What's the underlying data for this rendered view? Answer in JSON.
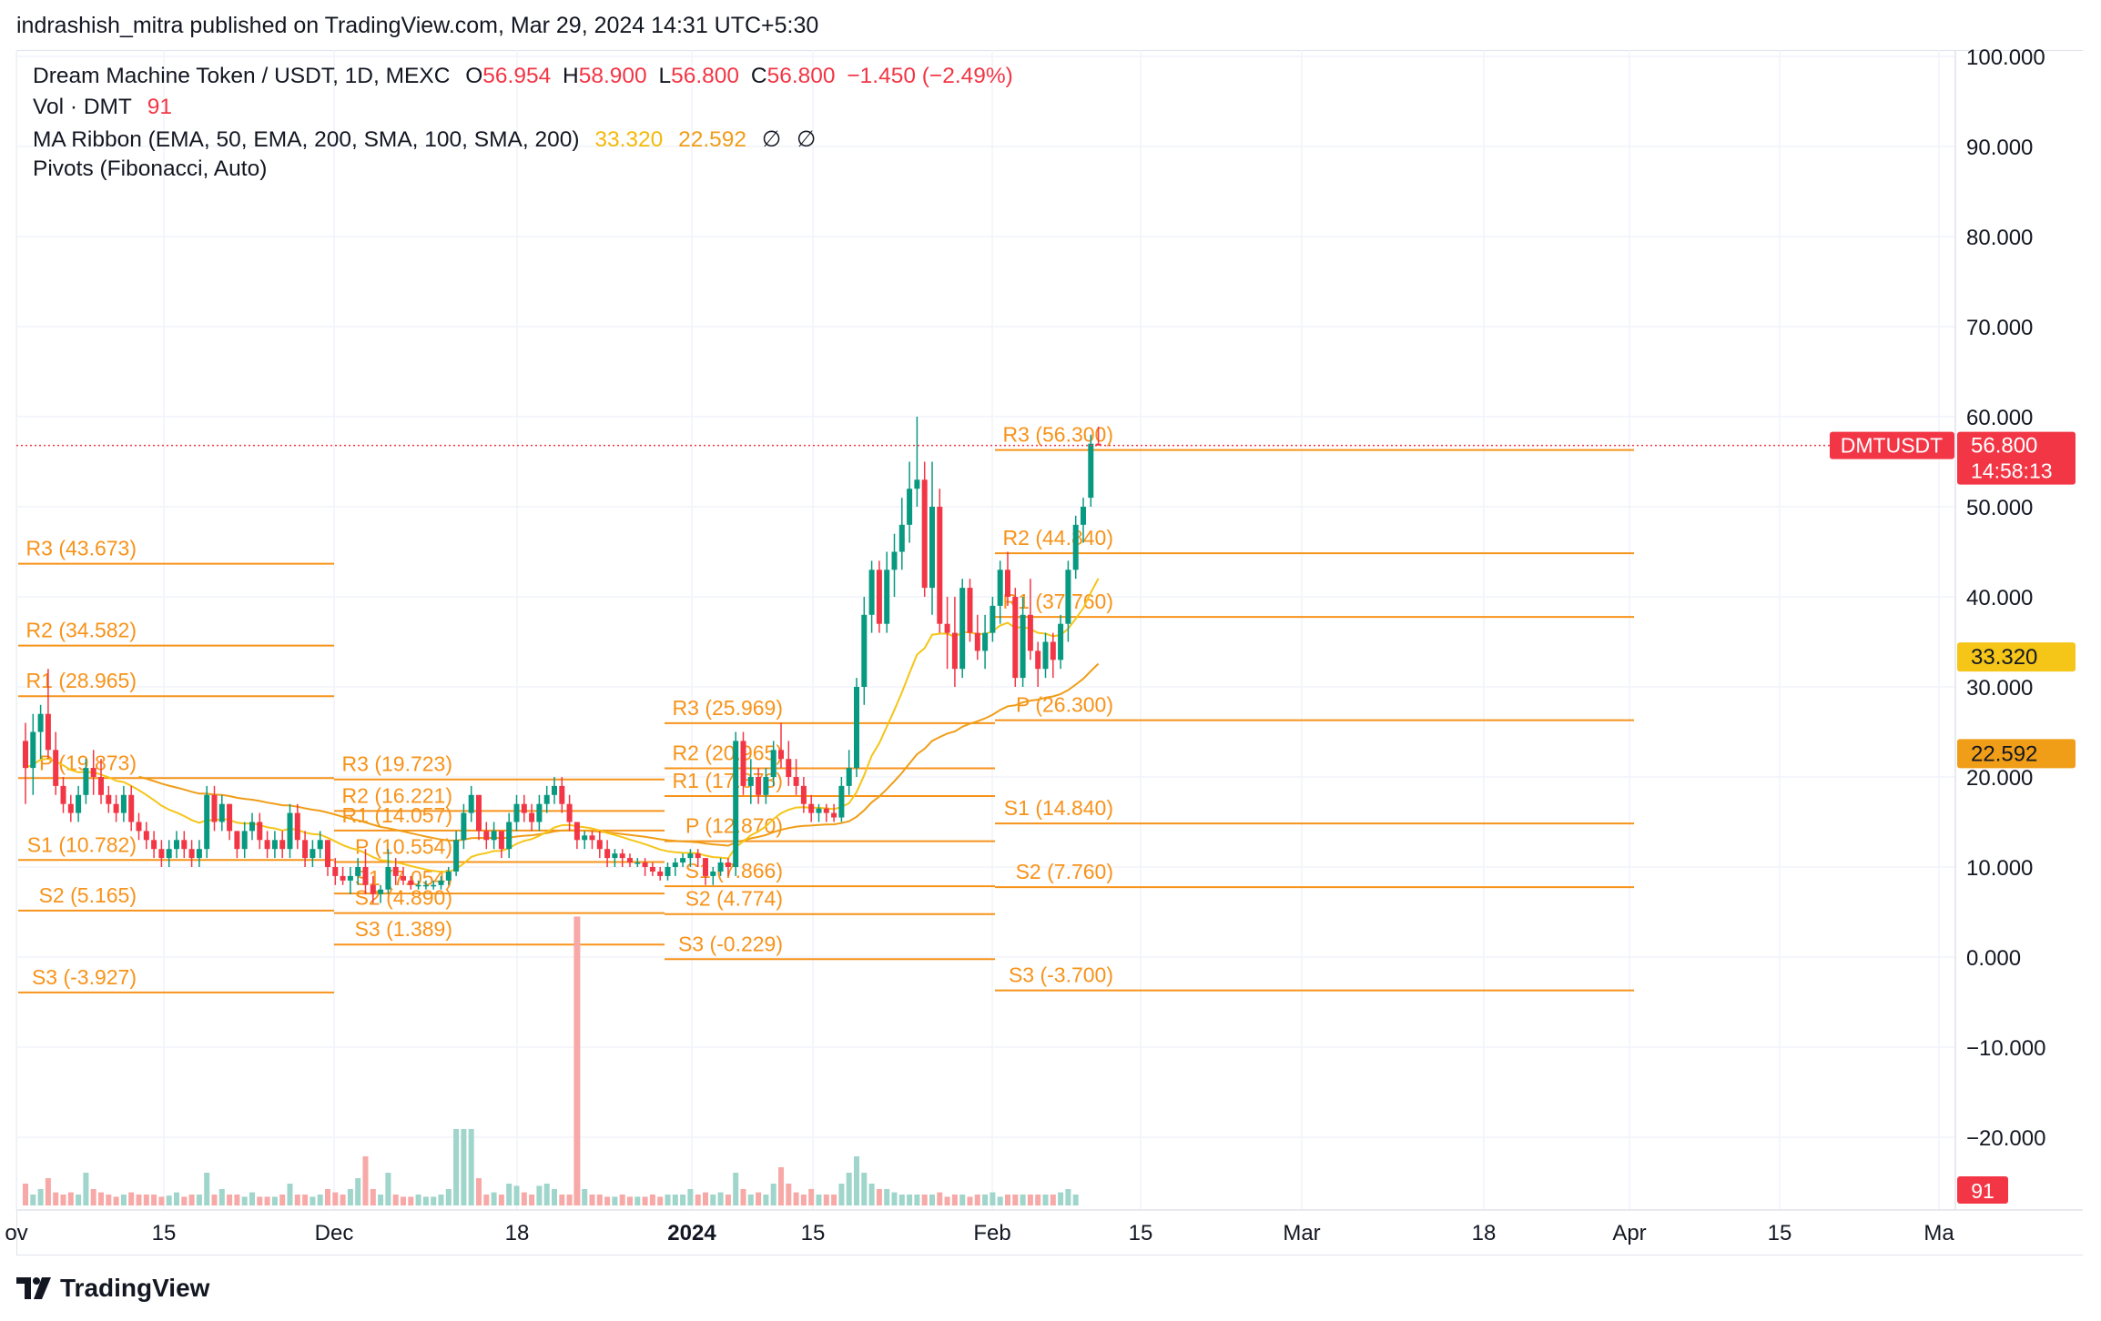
{
  "header": {
    "attribution": "indrashish_mitra published on TradingView.com, Mar 29, 2024 14:31 UTC+5:30"
  },
  "legend": {
    "symbol_line": "Dream Machine Token / USDT, 1D, MEXC",
    "o_label": "O",
    "o_value": "56.954",
    "h_label": "H",
    "h_value": "58.900",
    "l_label": "L",
    "l_value": "56.800",
    "c_label": "C",
    "c_value": "56.800",
    "change": "−1.450 (−2.49%)",
    "vol_label": "Vol · DMT",
    "vol_value": "91",
    "ma_label": "MA Ribbon (EMA, 50, EMA, 200, SMA, 100, SMA, 200)",
    "ma_value1": "33.320",
    "ma_value2": "22.592",
    "ma_na1": "∅",
    "ma_na2": "∅",
    "pivots_label": "Pivots (Fibonacci, Auto)"
  },
  "footer": {
    "brand": "TradingView"
  },
  "colors": {
    "up": "#089981",
    "down": "#f23645",
    "vol_up": "#9fd5ca",
    "vol_down": "#f7a9a7",
    "pivot": "#f7931a",
    "ema50": "#f5c518",
    "ema200": "#f09d18",
    "grid": "#f0f3fa",
    "price_line": "#f23645"
  },
  "chart_data": {
    "type": "candlestick",
    "symbol": "DMTUSDT",
    "ylim": [
      -25,
      102
    ],
    "y_ticks": [
      "100.000",
      "90.000",
      "80.000",
      "70.000",
      "60.000",
      "50.000",
      "40.000",
      "30.000",
      "20.000",
      "10.000",
      "0.000",
      "−10.000",
      "−20.000"
    ],
    "x_ticks": [
      "ov",
      "15",
      "Dec",
      "18",
      "2024",
      "15",
      "Feb",
      "15",
      "Mar",
      "18",
      "Apr",
      "15",
      "Ma"
    ],
    "last_price": {
      "label": "DMTUSDT",
      "value": "56.800",
      "countdown": "14:58:13",
      "y": 56.8
    },
    "ma_badges": [
      {
        "value": "33.320",
        "y": 33.32
      },
      {
        "value": "22.592",
        "y": 22.592
      }
    ],
    "volume_badge": "91",
    "pivot_periods": [
      {
        "levels": [
          {
            "label": "R3 (43.673)",
            "y": 43.673
          },
          {
            "label": "R2 (34.582)",
            "y": 34.582
          },
          {
            "label": "R1 (28.965)",
            "y": 28.965
          },
          {
            "label": "P (19.873)",
            "y": 19.873
          },
          {
            "label": "S1 (10.782)",
            "y": 10.782
          },
          {
            "label": "S2 (5.165)",
            "y": 5.165
          },
          {
            "label": "S3 (-3.927)",
            "y": -3.927
          }
        ]
      },
      {
        "levels": [
          {
            "label": "R3 (19.723)",
            "y": 19.723
          },
          {
            "label": "R2 (16.221)",
            "y": 16.221
          },
          {
            "label": "R1 (14.057)",
            "y": 14.057
          },
          {
            "label": "P (10.554)",
            "y": 10.554
          },
          {
            "label": "S1 (7.054)",
            "y": 7.054
          },
          {
            "label": "S2 (4.890)",
            "y": 4.89
          },
          {
            "label": "S3 (1.389)",
            "y": 1.389
          }
        ]
      },
      {
        "levels": [
          {
            "label": "R3 (25.969)",
            "y": 25.969
          },
          {
            "label": "R2 (20.965)",
            "y": 20.965
          },
          {
            "label": "R1 (17.873)",
            "y": 17.873
          },
          {
            "label": "P (12.870)",
            "y": 12.87
          },
          {
            "label": "S1 (7.866)",
            "y": 7.866
          },
          {
            "label": "S2 (4.774)",
            "y": 4.774
          },
          {
            "label": "S3 (-0.229)",
            "y": -0.229
          }
        ]
      },
      {
        "levels": [
          {
            "label": "R3 (56.300)",
            "y": 56.3
          },
          {
            "label": "R2 (44.840)",
            "y": 44.84
          },
          {
            "label": "R1 (37.760)",
            "y": 37.76
          },
          {
            "label": "P (26.300)",
            "y": 26.3
          },
          {
            "label": "S1 (14.840)",
            "y": 14.84
          },
          {
            "label": "S2 (7.760)",
            "y": 7.76
          },
          {
            "label": "S3 (-3.700)",
            "y": -3.7
          }
        ]
      }
    ],
    "candles": [
      [
        24,
        26,
        17,
        21
      ],
      [
        21,
        27,
        18,
        25
      ],
      [
        25,
        28,
        22,
        27
      ],
      [
        27,
        32,
        22,
        23
      ],
      [
        23,
        25,
        18,
        19
      ],
      [
        19,
        20,
        16,
        17
      ],
      [
        17,
        18,
        15,
        16
      ],
      [
        16,
        19,
        15,
        18
      ],
      [
        18,
        22,
        17,
        21
      ],
      [
        21,
        23,
        18,
        20
      ],
      [
        20,
        22,
        17,
        18
      ],
      [
        18,
        19,
        16,
        17
      ],
      [
        17,
        18,
        15,
        16
      ],
      [
        16,
        19,
        15,
        18
      ],
      [
        18,
        19,
        14,
        15
      ],
      [
        15,
        16,
        13,
        14
      ],
      [
        14,
        15,
        12,
        13
      ],
      [
        13,
        14,
        11,
        12
      ],
      [
        12,
        13,
        10,
        11
      ],
      [
        11,
        13,
        10,
        12
      ],
      [
        12,
        14,
        11,
        13
      ],
      [
        13,
        14,
        11,
        12
      ],
      [
        12,
        13,
        10,
        11
      ],
      [
        11,
        13,
        10,
        12
      ],
      [
        12,
        19,
        11,
        18
      ],
      [
        18,
        19,
        14,
        15
      ],
      [
        15,
        18,
        14,
        17
      ],
      [
        17,
        17,
        13,
        14
      ],
      [
        14,
        14,
        11,
        12
      ],
      [
        12,
        15,
        11,
        14
      ],
      [
        14,
        16,
        13,
        15
      ],
      [
        15,
        16,
        12,
        13
      ],
      [
        13,
        14,
        11,
        12
      ],
      [
        12,
        14,
        11,
        13
      ],
      [
        13,
        14,
        11,
        12
      ],
      [
        12,
        17,
        11,
        16
      ],
      [
        16,
        17,
        12,
        13
      ],
      [
        13,
        14,
        10,
        11
      ],
      [
        11,
        13,
        10,
        12
      ],
      [
        12,
        14,
        11,
        13
      ],
      [
        13,
        13,
        9,
        10
      ],
      [
        10,
        11,
        8,
        9
      ],
      [
        9,
        10,
        8,
        8.5
      ],
      [
        8.5,
        10,
        7,
        9
      ],
      [
        9,
        11,
        8,
        10
      ],
      [
        10,
        12,
        7,
        8
      ],
      [
        8,
        9,
        6,
        7
      ],
      [
        7,
        8,
        6,
        7.5
      ],
      [
        7.5,
        12,
        7,
        10
      ],
      [
        10,
        11,
        8,
        9
      ],
      [
        9,
        10,
        8,
        8.5
      ],
      [
        8.5,
        9,
        7.5,
        8
      ],
      [
        8,
        8.5,
        7.5,
        8
      ],
      [
        8,
        8.5,
        7.5,
        8
      ],
      [
        8,
        8.5,
        7.5,
        8
      ],
      [
        8,
        9,
        7.5,
        8.5
      ],
      [
        8.5,
        10,
        8,
        9.5
      ],
      [
        9.5,
        14,
        9,
        13
      ],
      [
        13,
        17,
        12,
        16
      ],
      [
        16,
        19,
        15,
        18
      ],
      [
        18,
        18,
        13,
        14
      ],
      [
        14,
        15,
        12,
        13
      ],
      [
        13,
        15,
        12,
        14
      ],
      [
        14,
        14,
        11,
        12
      ],
      [
        12,
        16,
        11,
        15
      ],
      [
        15,
        18,
        14,
        17
      ],
      [
        17,
        18,
        15,
        16
      ],
      [
        16,
        17,
        14,
        15
      ],
      [
        15,
        18,
        14,
        17
      ],
      [
        17,
        19,
        16,
        18
      ],
      [
        18,
        20,
        17,
        19
      ],
      [
        19,
        20,
        16,
        17
      ],
      [
        17,
        18,
        14,
        15
      ],
      [
        15,
        15,
        12,
        13
      ],
      [
        13,
        14,
        12,
        13.5
      ],
      [
        13.5,
        14,
        12,
        13
      ],
      [
        13,
        14,
        11,
        12
      ],
      [
        12,
        13,
        10,
        11
      ],
      [
        11,
        12,
        10,
        11.5
      ],
      [
        11.5,
        12,
        10,
        11
      ],
      [
        11,
        11.5,
        10,
        10.5
      ],
      [
        10.5,
        11,
        10,
        10.5
      ],
      [
        10.5,
        11,
        9,
        10
      ],
      [
        10,
        10.5,
        9,
        9.5
      ],
      [
        9.5,
        10,
        8.5,
        9
      ],
      [
        9,
        10.5,
        8.5,
        10
      ],
      [
        10,
        11,
        9,
        10.5
      ],
      [
        10.5,
        11.5,
        10,
        11
      ],
      [
        11,
        12,
        10,
        11.5
      ],
      [
        11.5,
        12,
        10,
        11
      ],
      [
        11,
        11,
        8,
        9
      ],
      [
        9,
        10,
        8,
        9.5
      ],
      [
        9.5,
        11,
        9,
        10.5
      ],
      [
        10.5,
        11,
        9,
        10
      ],
      [
        10,
        25,
        9,
        24
      ],
      [
        24,
        25,
        18,
        19
      ],
      [
        19,
        22,
        17,
        20
      ],
      [
        20,
        21,
        17,
        18
      ],
      [
        18,
        21,
        17,
        20
      ],
      [
        20,
        24,
        19,
        23
      ],
      [
        23,
        26,
        21,
        22
      ],
      [
        22,
        24,
        19,
        20
      ],
      [
        20,
        22,
        18,
        19
      ],
      [
        19,
        20,
        16,
        17
      ],
      [
        17,
        18,
        15,
        16
      ],
      [
        16,
        17,
        15,
        16.5
      ],
      [
        16.5,
        17,
        15,
        16
      ],
      [
        16,
        17,
        15,
        15.5
      ],
      [
        15.5,
        20,
        15,
        19
      ],
      [
        19,
        23,
        18,
        21
      ],
      [
        21,
        31,
        20,
        30
      ],
      [
        30,
        40,
        28,
        38
      ],
      [
        38,
        44,
        36,
        43
      ],
      [
        43,
        44,
        36,
        37
      ],
      [
        37,
        45,
        36,
        43
      ],
      [
        43,
        47,
        40,
        45
      ],
      [
        45,
        51,
        43,
        48
      ],
      [
        48,
        55,
        46,
        52
      ],
      [
        52,
        60,
        50,
        53
      ],
      [
        53,
        55,
        40,
        41
      ],
      [
        41,
        55,
        38,
        50
      ],
      [
        50,
        52,
        36,
        37
      ],
      [
        37,
        40,
        32,
        36
      ],
      [
        36,
        40,
        30,
        32
      ],
      [
        32,
        42,
        31,
        41
      ],
      [
        41,
        42,
        35,
        36
      ],
      [
        36,
        38,
        33,
        34
      ],
      [
        34,
        38,
        32,
        36
      ],
      [
        36,
        40,
        35,
        39
      ],
      [
        39,
        44,
        37,
        43
      ],
      [
        43,
        45,
        39,
        40
      ],
      [
        40,
        41,
        30,
        31
      ],
      [
        31,
        40,
        30,
        38
      ],
      [
        38,
        42,
        33,
        34
      ],
      [
        34,
        35,
        30,
        32
      ],
      [
        32,
        36,
        31,
        35
      ],
      [
        35,
        36,
        31,
        33
      ],
      [
        33,
        38,
        32,
        37
      ],
      [
        37,
        44,
        35,
        43
      ],
      [
        43,
        49,
        42,
        48
      ],
      [
        48,
        51,
        46,
        50
      ],
      [
        51,
        58,
        50,
        57
      ],
      [
        57,
        58.9,
        56.8,
        56.8
      ]
    ],
    "volumes": [
      2,
      1,
      1.5,
      2.5,
      1.2,
      1,
      1.2,
      1,
      3,
      1.5,
      1.2,
      1,
      0.8,
      1,
      1.2,
      1,
      1,
      1,
      0.8,
      0.9,
      1.2,
      0.8,
      1,
      1,
      3,
      1,
      1.5,
      1,
      1,
      0.8,
      1.2,
      0.8,
      0.8,
      0.8,
      1,
      2,
      1,
      1,
      0.8,
      1,
      1.5,
      1.2,
      1,
      1.5,
      2.5,
      4.5,
      1.5,
      1,
      3,
      1,
      0.8,
      0.8,
      1,
      0.8,
      0.8,
      1,
      1.5,
      7,
      7,
      7,
      2.5,
      1,
      1.2,
      1,
      2,
      1.8,
      1.2,
      1,
      1.8,
      2,
      1.5,
      1,
      1,
      9,
      1.5,
      1,
      1,
      0.8,
      0.8,
      1,
      0.8,
      0.8,
      0.8,
      1,
      0.8,
      1,
      1,
      1,
      1.5,
      1,
      1.2,
      1,
      1.2,
      1,
      3,
      1.5,
      1,
      1.2,
      1,
      2,
      3.5,
      2,
      1.2,
      1,
      1.5,
      1,
      1,
      1,
      2,
      3,
      4.5,
      3,
      2,
      1.5,
      1.5,
      1.2,
      1,
      1,
      1,
      1,
      1,
      1.2,
      0.8,
      1,
      1,
      0.8,
      1,
      1,
      1.2,
      0.8,
      1,
      1,
      1,
      1,
      1,
      1,
      1,
      1.2,
      1.5,
      1
    ]
  }
}
